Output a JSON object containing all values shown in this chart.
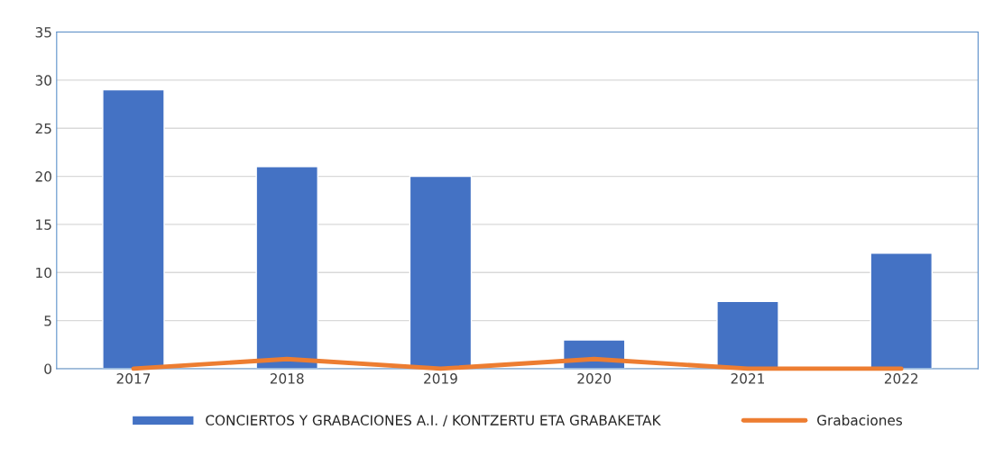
{
  "chart_data": {
    "type": "bar",
    "categories": [
      "2017",
      "2018",
      "2019",
      "2020",
      "2021",
      "2022"
    ],
    "series": [
      {
        "name": "CONCIERTOS Y GRABACIONES A.I. / KONTZERTU ETA GRABAKETAK",
        "color": "#4472c4",
        "values": [
          29,
          21,
          20,
          3,
          7,
          12
        ]
      },
      {
        "name": "Grabaciones",
        "type": "line",
        "color": "#ed7d31",
        "values": [
          0,
          1,
          0,
          1,
          0,
          0
        ]
      }
    ],
    "ylim": [
      0,
      35
    ],
    "yticks": [
      0,
      5,
      10,
      15,
      20,
      25,
      30,
      35
    ],
    "grid": "y",
    "legend": "bottom",
    "marker": "none",
    "line_style": "solid"
  }
}
